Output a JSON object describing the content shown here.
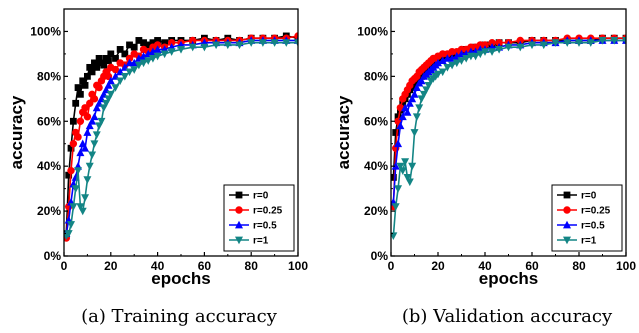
{
  "chart_data": [
    {
      "type": "line",
      "caption": "(a) Training accuracy",
      "xlabel": "epochs",
      "ylabel": "accuracy",
      "xlim": [
        0,
        100
      ],
      "ylim": [
        0,
        110
      ],
      "xticks": [
        0,
        20,
        40,
        60,
        80,
        100
      ],
      "yticks": [
        0,
        20,
        40,
        60,
        80,
        100
      ],
      "ytick_labels": [
        "0%",
        "20%",
        "40%",
        "60%",
        "80%",
        "100%"
      ],
      "legend_position": "bottom-right",
      "series": [
        {
          "name": "r=0",
          "color": "#000000",
          "marker": "square",
          "x": [
            1,
            2,
            3,
            4,
            5,
            6,
            7,
            8,
            9,
            10,
            11,
            12,
            13,
            14,
            15,
            16,
            17,
            18,
            19,
            20,
            22,
            24,
            26,
            28,
            30,
            32,
            34,
            36,
            38,
            40,
            43,
            46,
            50,
            55,
            60,
            65,
            70,
            75,
            80,
            85,
            90,
            95,
            100
          ],
          "y": [
            10,
            36,
            48,
            60,
            68,
            75,
            72,
            78,
            76,
            80,
            84,
            82,
            86,
            84,
            88,
            86,
            85,
            88,
            87,
            90,
            88,
            92,
            90,
            94,
            93,
            96,
            95,
            94,
            95,
            96,
            95,
            96,
            96,
            96,
            97,
            96,
            97,
            96,
            97,
            97,
            97,
            98,
            97
          ]
        },
        {
          "name": "r=0.25",
          "color": "#ff0000",
          "marker": "circle",
          "x": [
            1,
            2,
            3,
            4,
            5,
            6,
            7,
            8,
            9,
            10,
            11,
            12,
            13,
            14,
            15,
            16,
            17,
            18,
            19,
            20,
            22,
            24,
            26,
            28,
            30,
            32,
            34,
            36,
            38,
            40,
            43,
            46,
            50,
            55,
            60,
            65,
            70,
            75,
            80,
            85,
            90,
            95,
            100
          ],
          "y": [
            8,
            22,
            38,
            50,
            55,
            53,
            60,
            64,
            66,
            62,
            68,
            72,
            70,
            76,
            75,
            78,
            80,
            82,
            80,
            84,
            83,
            86,
            85,
            88,
            90,
            89,
            92,
            91,
            93,
            94,
            93,
            95,
            95,
            96,
            96,
            96,
            96,
            96,
            97,
            97,
            97,
            97,
            98
          ]
        },
        {
          "name": "r=0.5",
          "color": "#0000ff",
          "marker": "triangle-up",
          "x": [
            1,
            2,
            3,
            4,
            5,
            6,
            7,
            8,
            9,
            10,
            11,
            12,
            13,
            14,
            15,
            16,
            17,
            18,
            19,
            20,
            22,
            24,
            26,
            28,
            30,
            32,
            34,
            36,
            38,
            40,
            43,
            46,
            50,
            55,
            60,
            65,
            70,
            75,
            80,
            85,
            90,
            95,
            100
          ],
          "y": [
            10,
            16,
            24,
            32,
            35,
            40,
            46,
            50,
            48,
            55,
            58,
            60,
            62,
            66,
            68,
            70,
            72,
            74,
            76,
            78,
            80,
            82,
            84,
            86,
            86,
            88,
            89,
            90,
            91,
            92,
            92,
            93,
            94,
            94,
            95,
            95,
            95,
            95,
            96,
            96,
            96,
            96,
            96
          ]
        },
        {
          "name": "r=1",
          "color": "#138585",
          "marker": "triangle-down",
          "x": [
            1,
            2,
            3,
            4,
            5,
            6,
            7,
            8,
            9,
            10,
            11,
            12,
            13,
            14,
            15,
            16,
            17,
            18,
            19,
            20,
            22,
            24,
            26,
            28,
            30,
            32,
            34,
            36,
            38,
            40,
            43,
            46,
            50,
            55,
            60,
            65,
            70,
            75,
            80,
            85,
            90,
            95,
            100
          ],
          "y": [
            9,
            10,
            14,
            22,
            30,
            38,
            22,
            20,
            26,
            34,
            40,
            45,
            50,
            54,
            58,
            60,
            66,
            68,
            70,
            72,
            75,
            78,
            80,
            82,
            83,
            85,
            86,
            87,
            88,
            89,
            90,
            91,
            92,
            93,
            93,
            94,
            94,
            94,
            95,
            95,
            95,
            95,
            95
          ]
        }
      ]
    },
    {
      "type": "line",
      "caption": "(b) Validation accuracy",
      "xlabel": "epochs",
      "ylabel": "accuracy",
      "xlim": [
        0,
        100
      ],
      "ylim": [
        0,
        110
      ],
      "xticks": [
        0,
        20,
        40,
        60,
        80,
        100
      ],
      "yticks": [
        0,
        20,
        40,
        60,
        80,
        100
      ],
      "ytick_labels": [
        "0%",
        "20%",
        "40%",
        "60%",
        "80%",
        "100%"
      ],
      "legend_position": "bottom-right",
      "series": [
        {
          "name": "r=0",
          "color": "#000000",
          "marker": "square",
          "x": [
            1,
            2,
            3,
            4,
            5,
            6,
            7,
            8,
            9,
            10,
            11,
            12,
            13,
            14,
            15,
            16,
            17,
            18,
            19,
            20,
            22,
            24,
            26,
            28,
            30,
            32,
            34,
            36,
            38,
            40,
            43,
            46,
            50,
            55,
            60,
            65,
            70,
            75,
            80,
            85,
            90,
            95,
            100
          ],
          "y": [
            35,
            55,
            62,
            65,
            68,
            70,
            72,
            74,
            75,
            76,
            78,
            79,
            80,
            81,
            82,
            83,
            84,
            85,
            86,
            87,
            88,
            89,
            90,
            90,
            91,
            92,
            92,
            93,
            93,
            94,
            94,
            95,
            95,
            95,
            96,
            96,
            96,
            96,
            96,
            96,
            97,
            97,
            97
          ]
        },
        {
          "name": "r=0.25",
          "color": "#ff0000",
          "marker": "circle",
          "x": [
            1,
            2,
            3,
            4,
            5,
            6,
            7,
            8,
            9,
            10,
            11,
            12,
            13,
            14,
            15,
            16,
            17,
            18,
            19,
            20,
            22,
            24,
            26,
            28,
            30,
            32,
            34,
            36,
            38,
            40,
            43,
            46,
            50,
            55,
            60,
            65,
            70,
            75,
            80,
            85,
            90,
            95,
            100
          ],
          "y": [
            22,
            48,
            60,
            66,
            70,
            72,
            74,
            76,
            78,
            79,
            80,
            82,
            83,
            84,
            85,
            86,
            87,
            88,
            88,
            89,
            90,
            90,
            91,
            91,
            92,
            92,
            93,
            93,
            94,
            94,
            95,
            95,
            95,
            96,
            96,
            96,
            96,
            97,
            97,
            97,
            97,
            97,
            97
          ]
        },
        {
          "name": "r=0.5",
          "color": "#0000ff",
          "marker": "triangle-up",
          "x": [
            1,
            2,
            3,
            4,
            5,
            6,
            7,
            8,
            9,
            10,
            11,
            12,
            13,
            14,
            15,
            16,
            17,
            18,
            19,
            20,
            22,
            24,
            26,
            28,
            30,
            32,
            34,
            36,
            38,
            40,
            43,
            46,
            50,
            55,
            60,
            65,
            70,
            75,
            80,
            85,
            90,
            95,
            100
          ],
          "y": [
            24,
            40,
            50,
            58,
            62,
            66,
            64,
            68,
            70,
            72,
            75,
            77,
            78,
            80,
            81,
            82,
            83,
            84,
            85,
            86,
            87,
            88,
            88,
            89,
            90,
            90,
            91,
            91,
            92,
            92,
            93,
            93,
            94,
            94,
            95,
            95,
            95,
            96,
            96,
            96,
            96,
            96,
            96
          ]
        },
        {
          "name": "r=1",
          "color": "#138585",
          "marker": "triangle-down",
          "x": [
            1,
            2,
            3,
            4,
            5,
            6,
            7,
            8,
            9,
            10,
            11,
            12,
            13,
            14,
            15,
            16,
            17,
            18,
            19,
            20,
            22,
            24,
            26,
            28,
            30,
            32,
            34,
            36,
            38,
            40,
            43,
            46,
            50,
            55,
            60,
            65,
            70,
            75,
            80,
            85,
            90,
            95,
            100
          ],
          "y": [
            9,
            22,
            30,
            40,
            38,
            42,
            35,
            33,
            40,
            55,
            62,
            66,
            70,
            72,
            74,
            76,
            78,
            79,
            80,
            81,
            82,
            84,
            85,
            86,
            87,
            88,
            89,
            89,
            90,
            91,
            91,
            92,
            93,
            93,
            94,
            94,
            95,
            95,
            95,
            95,
            96,
            96,
            96
          ]
        }
      ]
    }
  ]
}
